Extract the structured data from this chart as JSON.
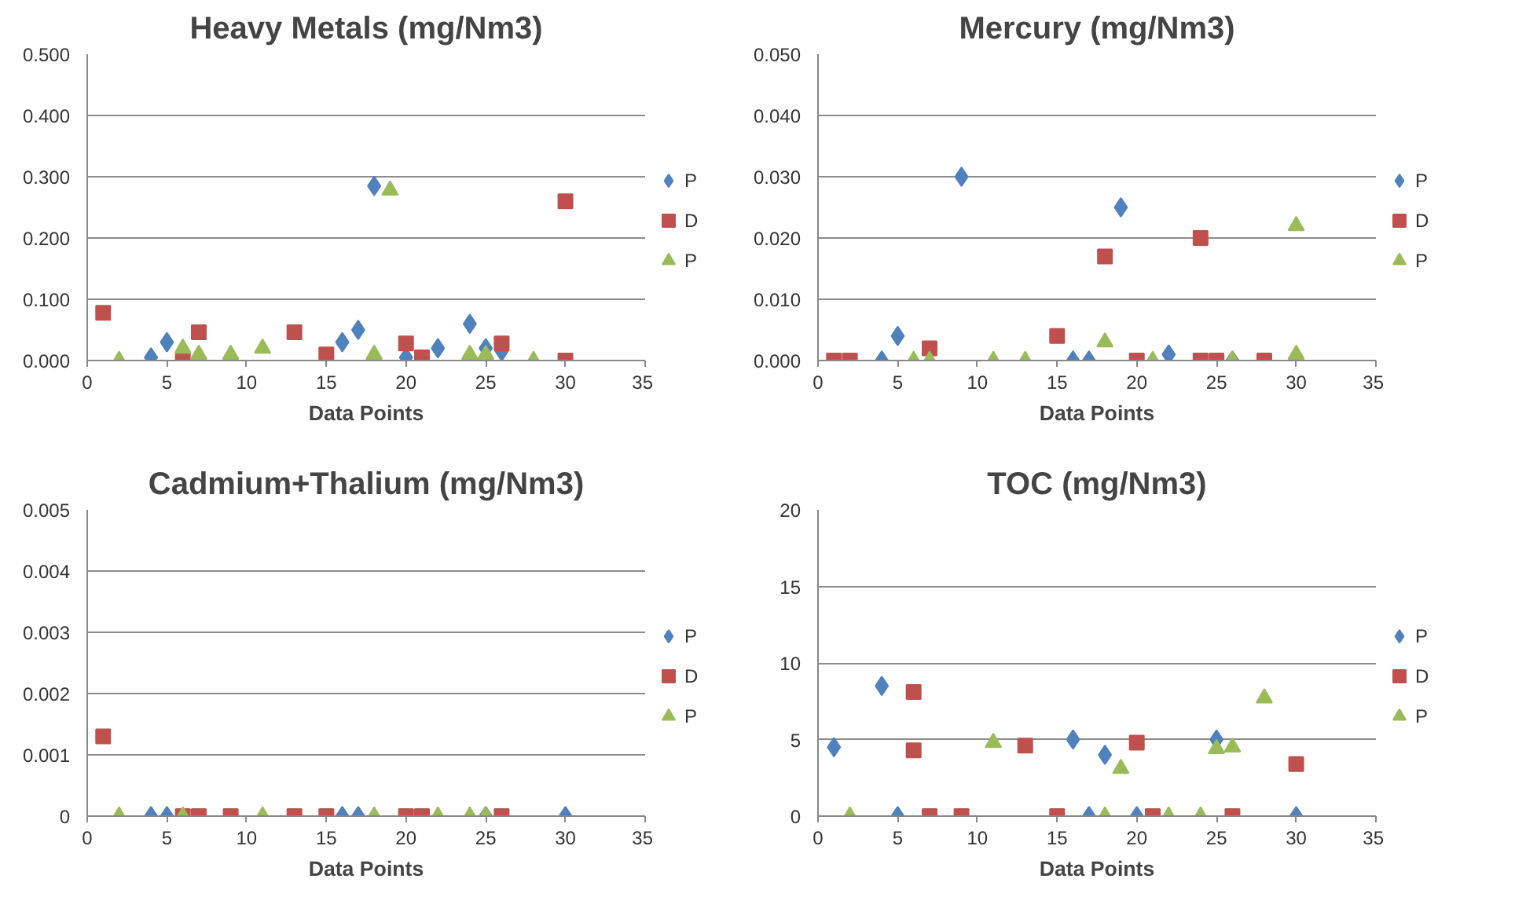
{
  "chart_data": [
    {
      "type": "scatter",
      "title": "Heavy Metals (mg/Nm3)",
      "xlabel": "Data Points",
      "xlim": [
        0,
        35
      ],
      "xticks": [
        0,
        5,
        10,
        15,
        20,
        25,
        30,
        35
      ],
      "ylim": [
        0,
        0.5
      ],
      "yticks": [
        {
          "value": 0,
          "label": "0.000"
        },
        {
          "value": 0.1,
          "label": "0.100"
        },
        {
          "value": 0.2,
          "label": "0.200"
        },
        {
          "value": 0.3,
          "label": "0.300"
        },
        {
          "value": 0.4,
          "label": "0.400"
        },
        {
          "value": 0.5,
          "label": "0.500"
        }
      ],
      "grid": "y",
      "legend": "right",
      "series": [
        {
          "name": "P",
          "color": "#4f81bd",
          "marker": "diamond",
          "x": [
            4,
            5,
            16,
            17,
            18,
            20,
            22,
            24,
            25,
            26
          ],
          "values": [
            0.005,
            0.03,
            0.03,
            0.05,
            0.285,
            0.005,
            0.02,
            0.06,
            0.02,
            0.015
          ]
        },
        {
          "name": "D",
          "color": "#c0504d",
          "marker": "square",
          "x": [
            1,
            6,
            7,
            13,
            15,
            20,
            21,
            26,
            30,
            30
          ],
          "values": [
            0.078,
            0.0,
            0.046,
            0.046,
            0.01,
            0.028,
            0.005,
            0.028,
            0.26,
            0.0
          ]
        },
        {
          "name": "P",
          "color": "#9bbb59",
          "marker": "triangle",
          "x": [
            2,
            6,
            7,
            9,
            11,
            18,
            19,
            24,
            25,
            28
          ],
          "values": [
            0.0,
            0.02,
            0.01,
            0.01,
            0.02,
            0.01,
            0.278,
            0.01,
            0.01,
            0.0
          ]
        }
      ]
    },
    {
      "type": "scatter",
      "title": "Mercury (mg/Nm3)",
      "xlabel": "Data Points",
      "xlim": [
        0,
        35
      ],
      "xticks": [
        0,
        5,
        10,
        15,
        20,
        25,
        30,
        35
      ],
      "ylim": [
        0,
        0.05
      ],
      "yticks": [
        {
          "value": 0,
          "label": "0.000"
        },
        {
          "value": 0.01,
          "label": "0.010"
        },
        {
          "value": 0.02,
          "label": "0.020"
        },
        {
          "value": 0.03,
          "label": "0.030"
        },
        {
          "value": 0.04,
          "label": "0.040"
        },
        {
          "value": 0.05,
          "label": "0.050"
        }
      ],
      "grid": "y",
      "legend": "right",
      "series": [
        {
          "name": "P",
          "color": "#4f81bd",
          "marker": "diamond",
          "x": [
            4,
            5,
            9,
            16,
            17,
            19,
            22,
            26
          ],
          "values": [
            0.0,
            0.004,
            0.03,
            0.0,
            0.0,
            0.025,
            0.001,
            0.0
          ]
        },
        {
          "name": "D",
          "color": "#c0504d",
          "marker": "square",
          "x": [
            1,
            2,
            7,
            15,
            18,
            20,
            24,
            24,
            25,
            28
          ],
          "values": [
            0.0,
            0.0,
            0.002,
            0.004,
            0.017,
            0.0,
            0.02,
            0.0,
            0.0,
            0.0
          ]
        },
        {
          "name": "P",
          "color": "#9bbb59",
          "marker": "triangle",
          "x": [
            6,
            7,
            11,
            13,
            18,
            21,
            26,
            30,
            30
          ],
          "values": [
            0.0,
            0.0,
            0.0,
            0.0,
            0.003,
            0.0,
            0.0,
            0.022,
            0.001
          ]
        }
      ]
    },
    {
      "type": "scatter",
      "title": "Cadmium+Thalium (mg/Nm3)",
      "xlabel": "Data Points",
      "xlim": [
        0,
        35
      ],
      "xticks": [
        0,
        5,
        10,
        15,
        20,
        25,
        30,
        35
      ],
      "ylim": [
        0,
        0.005
      ],
      "yticks": [
        0,
        0.001,
        0.002,
        0.003,
        0.004,
        0.005
      ],
      "grid": "y",
      "legend": "right",
      "series": [
        {
          "name": "P",
          "color": "#4f81bd",
          "marker": "diamond",
          "x": [
            4,
            5,
            16,
            17,
            25,
            30
          ],
          "values": [
            0,
            0,
            0,
            0,
            0,
            0
          ]
        },
        {
          "name": "D",
          "color": "#c0504d",
          "marker": "square",
          "x": [
            1,
            6,
            7,
            9,
            13,
            15,
            20,
            21,
            26
          ],
          "values": [
            0.0013,
            0,
            0,
            0,
            0,
            0,
            0,
            0,
            0
          ]
        },
        {
          "name": "P",
          "color": "#9bbb59",
          "marker": "triangle",
          "x": [
            2,
            6,
            11,
            18,
            22,
            24,
            25
          ],
          "values": [
            0,
            0,
            0,
            0,
            0,
            0,
            0
          ]
        }
      ]
    },
    {
      "type": "scatter",
      "title": "TOC (mg/Nm3)",
      "xlabel": "Data Points",
      "xlim": [
        0,
        35
      ],
      "xticks": [
        0,
        5,
        10,
        15,
        20,
        25,
        30,
        35
      ],
      "ylim": [
        0,
        20
      ],
      "yticks": [
        0,
        5,
        10,
        15,
        20
      ],
      "grid": "y",
      "legend": "right",
      "series": [
        {
          "name": "P",
          "color": "#4f81bd",
          "marker": "diamond",
          "x": [
            1,
            4,
            5,
            16,
            17,
            18,
            20,
            25,
            30
          ],
          "values": [
            4.5,
            8.5,
            0,
            5,
            0,
            4,
            0,
            5,
            0
          ]
        },
        {
          "name": "D",
          "color": "#c0504d",
          "marker": "square",
          "x": [
            6,
            6,
            7,
            9,
            13,
            15,
            20,
            21,
            26,
            30
          ],
          "values": [
            8.1,
            4.3,
            0,
            0,
            4.6,
            0,
            4.8,
            0,
            0,
            3.4
          ]
        },
        {
          "name": "P",
          "color": "#9bbb59",
          "marker": "triangle",
          "x": [
            2,
            11,
            18,
            19,
            22,
            24,
            25,
            26,
            28
          ],
          "values": [
            0,
            4.8,
            0,
            3.1,
            0,
            0,
            4.4,
            4.5,
            7.7
          ]
        }
      ]
    }
  ]
}
